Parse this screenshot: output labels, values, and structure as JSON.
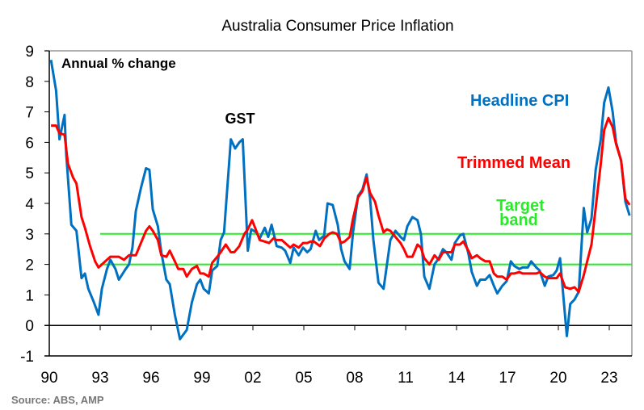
{
  "chart_data": {
    "type": "line",
    "title": "Australia Consumer Price Inflation",
    "ylabel": "Annual % change",
    "ylim": [
      -1,
      9
    ],
    "xlim": [
      1990,
      2024.3
    ],
    "yticks": [
      -1,
      0,
      1,
      2,
      3,
      4,
      5,
      6,
      7,
      8,
      9
    ],
    "xticks": [
      1990,
      1993,
      1996,
      1999,
      2002,
      2005,
      2008,
      2011,
      2014,
      2017,
      2020,
      2023
    ],
    "xtick_labels": [
      "90",
      "93",
      "96",
      "99",
      "02",
      "05",
      "08",
      "11",
      "14",
      "17",
      "20",
      "23"
    ],
    "grid": false,
    "annotations": [
      {
        "text": "GST",
        "x": 2001,
        "y": 6.7
      }
    ],
    "series": [
      {
        "name": "Headline CPI",
        "color": "#0070C0",
        "points": [
          [
            1990.1,
            8.7
          ],
          [
            1990.4,
            7.7
          ],
          [
            1990.6,
            6.1
          ],
          [
            1990.9,
            6.9
          ],
          [
            1991.0,
            5.6
          ],
          [
            1991.3,
            3.3
          ],
          [
            1991.6,
            3.1
          ],
          [
            1991.9,
            1.55
          ],
          [
            1992.1,
            1.7
          ],
          [
            1992.3,
            1.2
          ],
          [
            1992.6,
            0.8
          ],
          [
            1992.9,
            0.35
          ],
          [
            1993.1,
            1.2
          ],
          [
            1993.4,
            1.85
          ],
          [
            1993.6,
            2.15
          ],
          [
            1993.9,
            1.85
          ],
          [
            1994.1,
            1.5
          ],
          [
            1994.5,
            1.85
          ],
          [
            1994.7,
            2.0
          ],
          [
            1994.9,
            2.55
          ],
          [
            1995.1,
            3.75
          ],
          [
            1995.4,
            4.5
          ],
          [
            1995.7,
            5.15
          ],
          [
            1995.9,
            5.1
          ],
          [
            1996.1,
            3.8
          ],
          [
            1996.4,
            3.25
          ],
          [
            1996.6,
            2.4
          ],
          [
            1996.9,
            1.5
          ],
          [
            1997.1,
            1.35
          ],
          [
            1997.4,
            0.35
          ],
          [
            1997.7,
            -0.45
          ],
          [
            1997.9,
            -0.3
          ],
          [
            1998.1,
            -0.15
          ],
          [
            1998.4,
            0.75
          ],
          [
            1998.7,
            1.35
          ],
          [
            1998.9,
            1.5
          ],
          [
            1999.1,
            1.2
          ],
          [
            1999.4,
            1.05
          ],
          [
            1999.6,
            1.8
          ],
          [
            1999.9,
            1.95
          ],
          [
            2000.1,
            2.8
          ],
          [
            2000.3,
            3.05
          ],
          [
            2000.7,
            6.1
          ],
          [
            2000.95,
            5.8
          ],
          [
            2001.2,
            6.0
          ],
          [
            2001.4,
            6.1
          ],
          [
            2001.7,
            2.45
          ],
          [
            2001.9,
            3.15
          ],
          [
            2002.2,
            3.05
          ],
          [
            2002.4,
            2.85
          ],
          [
            2002.7,
            3.2
          ],
          [
            2002.9,
            2.9
          ],
          [
            2003.1,
            3.3
          ],
          [
            2003.4,
            2.6
          ],
          [
            2003.7,
            2.55
          ],
          [
            2003.9,
            2.45
          ],
          [
            2004.2,
            2.05
          ],
          [
            2004.4,
            2.55
          ],
          [
            2004.7,
            2.3
          ],
          [
            2004.95,
            2.55
          ],
          [
            2005.2,
            2.4
          ],
          [
            2005.4,
            2.5
          ],
          [
            2005.7,
            3.1
          ],
          [
            2005.9,
            2.8
          ],
          [
            2006.2,
            2.95
          ],
          [
            2006.4,
            4.0
          ],
          [
            2006.7,
            3.95
          ],
          [
            2007.0,
            3.3
          ],
          [
            2007.2,
            2.5
          ],
          [
            2007.4,
            2.1
          ],
          [
            2007.7,
            1.85
          ],
          [
            2007.9,
            3.05
          ],
          [
            2008.2,
            4.25
          ],
          [
            2008.45,
            4.45
          ],
          [
            2008.7,
            4.95
          ],
          [
            2008.9,
            4.2
          ],
          [
            2009.1,
            2.8
          ],
          [
            2009.4,
            1.4
          ],
          [
            2009.7,
            1.2
          ],
          [
            2009.9,
            2.0
          ],
          [
            2010.1,
            2.8
          ],
          [
            2010.4,
            3.1
          ],
          [
            2010.7,
            2.9
          ],
          [
            2010.9,
            2.8
          ],
          [
            2011.1,
            3.25
          ],
          [
            2011.4,
            3.55
          ],
          [
            2011.7,
            3.45
          ],
          [
            2011.9,
            3.0
          ],
          [
            2012.1,
            1.6
          ],
          [
            2012.4,
            1.2
          ],
          [
            2012.7,
            2.0
          ],
          [
            2012.95,
            2.2
          ],
          [
            2013.2,
            2.5
          ],
          [
            2013.4,
            2.4
          ],
          [
            2013.7,
            2.15
          ],
          [
            2013.9,
            2.7
          ],
          [
            2014.2,
            2.95
          ],
          [
            2014.4,
            3.0
          ],
          [
            2014.7,
            2.35
          ],
          [
            2014.9,
            1.75
          ],
          [
            2015.2,
            1.3
          ],
          [
            2015.4,
            1.5
          ],
          [
            2015.7,
            1.5
          ],
          [
            2015.95,
            1.65
          ],
          [
            2016.2,
            1.3
          ],
          [
            2016.4,
            1.05
          ],
          [
            2016.7,
            1.3
          ],
          [
            2016.95,
            1.45
          ],
          [
            2017.2,
            2.1
          ],
          [
            2017.4,
            1.95
          ],
          [
            2017.7,
            1.85
          ],
          [
            2017.9,
            1.9
          ],
          [
            2018.2,
            1.9
          ],
          [
            2018.4,
            2.1
          ],
          [
            2018.7,
            1.9
          ],
          [
            2018.9,
            1.8
          ],
          [
            2019.2,
            1.3
          ],
          [
            2019.4,
            1.6
          ],
          [
            2019.7,
            1.65
          ],
          [
            2019.9,
            1.8
          ],
          [
            2020.1,
            2.2
          ],
          [
            2020.5,
            -0.35
          ],
          [
            2020.7,
            0.7
          ],
          [
            2020.95,
            0.85
          ],
          [
            2021.2,
            1.1
          ],
          [
            2021.5,
            3.85
          ],
          [
            2021.7,
            3.05
          ],
          [
            2021.95,
            3.5
          ],
          [
            2022.2,
            5.1
          ],
          [
            2022.5,
            6.1
          ],
          [
            2022.7,
            7.3
          ],
          [
            2022.95,
            7.8
          ],
          [
            2023.2,
            7.0
          ],
          [
            2023.4,
            6.0
          ],
          [
            2023.7,
            5.4
          ],
          [
            2023.95,
            4.05
          ],
          [
            2024.2,
            3.6
          ]
        ]
      },
      {
        "name": "Trimmed Mean",
        "color": "#FF0000",
        "points": [
          [
            1990.1,
            6.55
          ],
          [
            1990.4,
            6.55
          ],
          [
            1990.6,
            6.3
          ],
          [
            1990.9,
            6.25
          ],
          [
            1991.1,
            5.3
          ],
          [
            1991.4,
            4.85
          ],
          [
            1991.6,
            4.65
          ],
          [
            1991.9,
            3.55
          ],
          [
            1992.1,
            3.2
          ],
          [
            1992.4,
            2.6
          ],
          [
            1992.7,
            2.1
          ],
          [
            1992.9,
            1.9
          ],
          [
            1993.1,
            2.0
          ],
          [
            1993.4,
            2.15
          ],
          [
            1993.6,
            2.25
          ],
          [
            1994.1,
            2.25
          ],
          [
            1994.4,
            2.15
          ],
          [
            1994.7,
            2.3
          ],
          [
            1995.1,
            2.3
          ],
          [
            1995.4,
            2.7
          ],
          [
            1995.7,
            3.1
          ],
          [
            1995.9,
            3.25
          ],
          [
            1996.1,
            3.1
          ],
          [
            1996.4,
            2.8
          ],
          [
            1996.6,
            2.3
          ],
          [
            1996.9,
            2.25
          ],
          [
            1997.1,
            2.45
          ],
          [
            1997.4,
            2.1
          ],
          [
            1997.6,
            1.85
          ],
          [
            1997.9,
            1.85
          ],
          [
            1998.1,
            1.6
          ],
          [
            1998.4,
            1.85
          ],
          [
            1998.7,
            1.95
          ],
          [
            1998.9,
            1.7
          ],
          [
            1999.1,
            1.7
          ],
          [
            1999.4,
            1.6
          ],
          [
            1999.6,
            2.05
          ],
          [
            1999.9,
            2.25
          ],
          [
            2000.1,
            2.4
          ],
          [
            2000.4,
            2.65
          ],
          [
            2000.7,
            2.4
          ],
          [
            2000.9,
            2.4
          ],
          [
            2001.2,
            2.6
          ],
          [
            2001.5,
            3.0
          ],
          [
            2001.7,
            3.15
          ],
          [
            2001.95,
            3.45
          ],
          [
            2002.2,
            3.1
          ],
          [
            2002.4,
            2.8
          ],
          [
            2002.7,
            2.75
          ],
          [
            2002.95,
            2.7
          ],
          [
            2003.2,
            2.85
          ],
          [
            2003.4,
            2.8
          ],
          [
            2003.7,
            2.8
          ],
          [
            2003.9,
            2.7
          ],
          [
            2004.2,
            2.55
          ],
          [
            2004.4,
            2.65
          ],
          [
            2004.7,
            2.55
          ],
          [
            2004.95,
            2.7
          ],
          [
            2005.2,
            2.7
          ],
          [
            2005.4,
            2.75
          ],
          [
            2005.6,
            2.75
          ],
          [
            2005.95,
            2.6
          ],
          [
            2006.2,
            2.85
          ],
          [
            2006.5,
            3.0
          ],
          [
            2006.7,
            3.05
          ],
          [
            2006.95,
            3.0
          ],
          [
            2007.2,
            2.7
          ],
          [
            2007.4,
            2.75
          ],
          [
            2007.7,
            2.9
          ],
          [
            2007.9,
            3.5
          ],
          [
            2008.2,
            4.2
          ],
          [
            2008.45,
            4.4
          ],
          [
            2008.7,
            4.85
          ],
          [
            2008.9,
            4.35
          ],
          [
            2009.2,
            4.05
          ],
          [
            2009.4,
            3.6
          ],
          [
            2009.7,
            3.05
          ],
          [
            2009.9,
            3.15
          ],
          [
            2010.1,
            3.1
          ],
          [
            2010.4,
            2.9
          ],
          [
            2010.7,
            2.7
          ],
          [
            2010.9,
            2.5
          ],
          [
            2011.1,
            2.25
          ],
          [
            2011.4,
            2.25
          ],
          [
            2011.7,
            2.65
          ],
          [
            2011.9,
            2.55
          ],
          [
            2012.1,
            2.2
          ],
          [
            2012.4,
            2.0
          ],
          [
            2012.7,
            2.3
          ],
          [
            2012.95,
            2.15
          ],
          [
            2013.2,
            2.4
          ],
          [
            2013.4,
            2.4
          ],
          [
            2013.7,
            2.4
          ],
          [
            2013.9,
            2.65
          ],
          [
            2014.2,
            2.65
          ],
          [
            2014.4,
            2.75
          ],
          [
            2014.7,
            2.45
          ],
          [
            2014.9,
            2.2
          ],
          [
            2015.2,
            2.3
          ],
          [
            2015.4,
            2.2
          ],
          [
            2015.7,
            2.1
          ],
          [
            2015.95,
            2.1
          ],
          [
            2016.2,
            1.7
          ],
          [
            2016.4,
            1.6
          ],
          [
            2016.7,
            1.6
          ],
          [
            2016.95,
            1.5
          ],
          [
            2017.2,
            1.7
          ],
          [
            2017.4,
            1.7
          ],
          [
            2017.7,
            1.75
          ],
          [
            2017.9,
            1.7
          ],
          [
            2018.2,
            1.7
          ],
          [
            2018.4,
            1.7
          ],
          [
            2018.7,
            1.7
          ],
          [
            2018.9,
            1.75
          ],
          [
            2019.2,
            1.6
          ],
          [
            2019.4,
            1.55
          ],
          [
            2019.7,
            1.55
          ],
          [
            2019.9,
            1.55
          ],
          [
            2020.1,
            1.7
          ],
          [
            2020.4,
            1.25
          ],
          [
            2020.7,
            1.2
          ],
          [
            2020.95,
            1.25
          ],
          [
            2021.2,
            1.1
          ],
          [
            2021.5,
            1.65
          ],
          [
            2021.7,
            2.1
          ],
          [
            2021.95,
            2.65
          ],
          [
            2022.2,
            3.85
          ],
          [
            2022.5,
            5.3
          ],
          [
            2022.7,
            6.4
          ],
          [
            2022.95,
            6.8
          ],
          [
            2023.2,
            6.5
          ],
          [
            2023.4,
            5.95
          ],
          [
            2023.7,
            5.4
          ],
          [
            2023.95,
            4.15
          ],
          [
            2024.2,
            3.95
          ]
        ]
      }
    ],
    "target_band": {
      "label_line1": "Target",
      "label_line2": "band",
      "lower": 2,
      "upper": 3,
      "start": 1993,
      "color": "#22EE22"
    },
    "source": "Source: ABS, AMP"
  }
}
